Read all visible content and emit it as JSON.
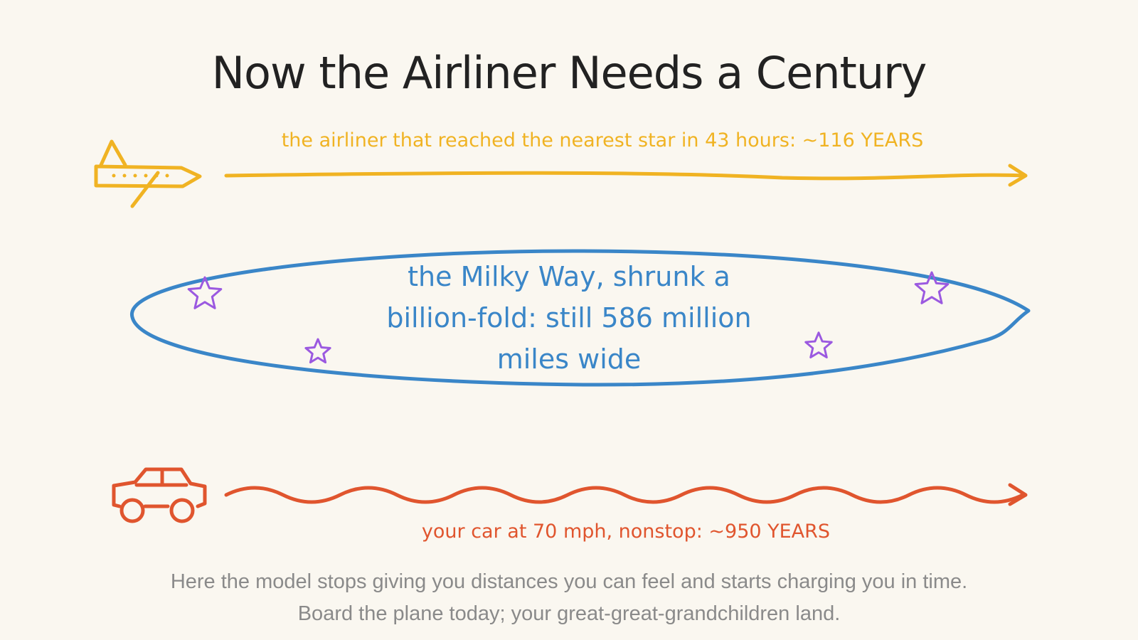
{
  "title": "Now the Airliner Needs a Century",
  "airliner": {
    "label": "the airliner that reached the nearest star in 43 hours: ~116 YEARS"
  },
  "galaxy": {
    "label": "the Milky Way, shrunk a billion-fold: still 586 million miles wide"
  },
  "car": {
    "label": "your car at 70 mph, nonstop: ~950 YEARS"
  },
  "caption": [
    "Here the model stops giving you distances you can feel and starts charging you in time.",
    "Board the plane today; your great-great-grandchildren land."
  ]
}
